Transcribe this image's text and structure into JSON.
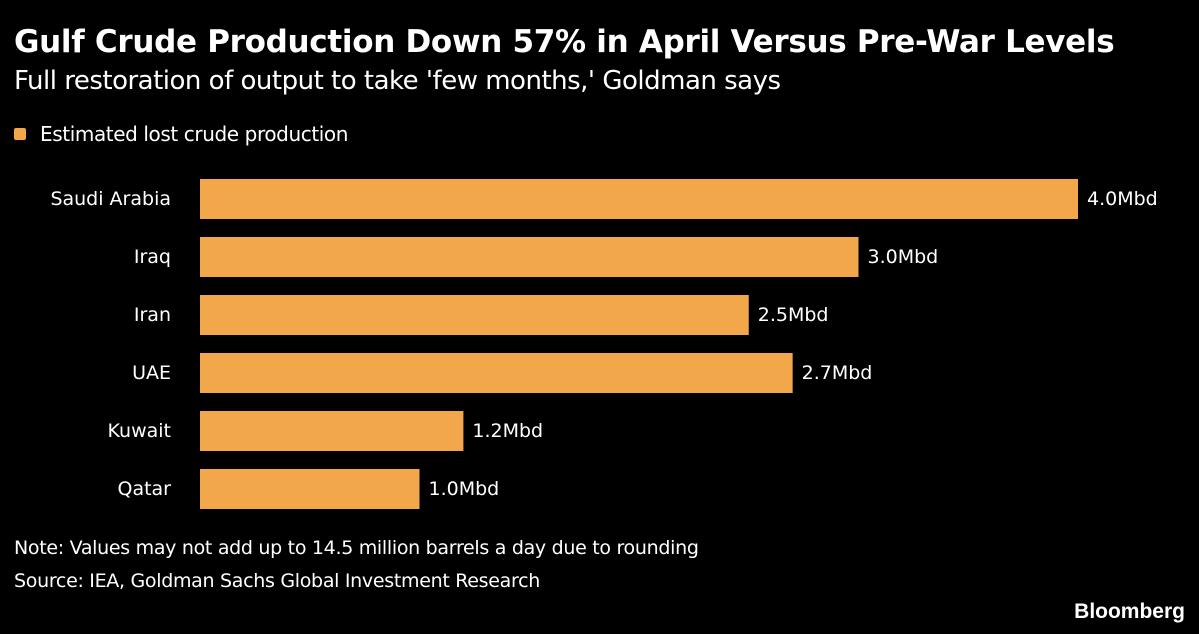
{
  "title": "Gulf Crude Production Down 57% in April Versus Pre-War Levels",
  "subtitle": "Full restoration of output to take 'few months,' Goldman says",
  "note": "Note: Values may not add up to 14.5 million barrels a day due to rounding",
  "source": "Source: IEA, Goldman Sachs Global Investment Research",
  "brand": "Bloomberg",
  "colors": {
    "background": "#000000",
    "bar": "#F2A74B",
    "text": "#FFFFFF"
  },
  "chart_data": {
    "type": "bar",
    "orientation": "horizontal",
    "title": "Gulf Crude Production Down 57% in April Versus Pre-War Levels",
    "subtitle": "Full restoration of output to take 'few months,' Goldman says",
    "xlabel": "",
    "ylabel": "",
    "legend": {
      "position": "top-left",
      "entries": [
        "Estimated lost crude production"
      ]
    },
    "grid": false,
    "xlim": [
      0,
      4.0
    ],
    "categories": [
      "Saudi Arabia",
      "Iraq",
      "Iran",
      "UAE",
      "Kuwait",
      "Qatar"
    ],
    "series": [
      {
        "name": "Estimated lost crude production",
        "values": [
          4.0,
          3.0,
          2.5,
          2.7,
          1.2,
          1.0
        ],
        "labels": [
          "4.0Mbd",
          "3.0Mbd",
          "2.5Mbd",
          "2.7Mbd",
          "1.2Mbd",
          "1.0Mbd"
        ]
      }
    ]
  }
}
